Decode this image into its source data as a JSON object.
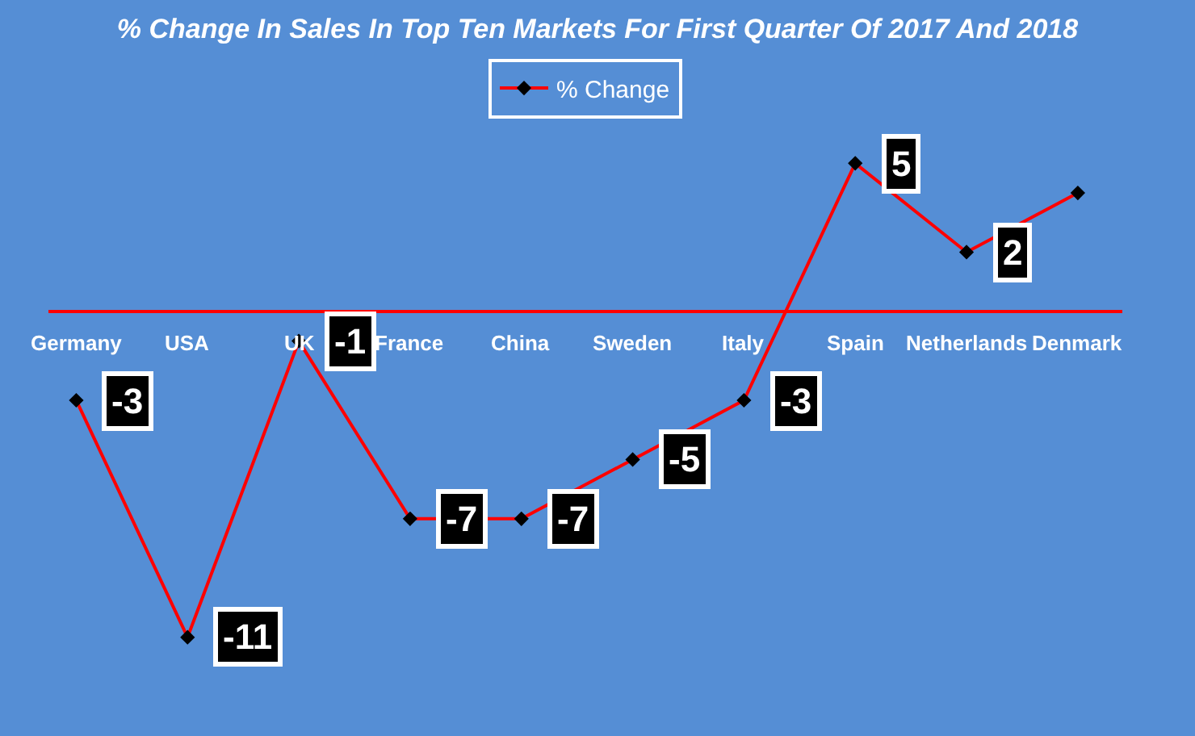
{
  "chart_data": {
    "type": "line",
    "title": "% Change In Sales In Top Ten Markets For First Quarter Of 2017 And 2018",
    "categories": [
      "Germany",
      "USA",
      "UK",
      "France",
      "China",
      "Sweden",
      "Italy",
      "Spain",
      "Netherlands",
      "Denmark"
    ],
    "series": [
      {
        "name": "% Change",
        "color": "#ff0000",
        "values": [
          -3,
          -11,
          -1,
          -7,
          -7,
          -5,
          -3,
          5,
          2,
          4
        ],
        "value_labels": [
          "-3",
          "-11",
          "-1",
          "-7",
          "-7",
          "-5",
          "-3",
          "5",
          "2",
          null
        ]
      }
    ],
    "marker": "diamond",
    "line_style": "solid",
    "legend": "top",
    "grid": false,
    "tick_labels": "x"
  }
}
